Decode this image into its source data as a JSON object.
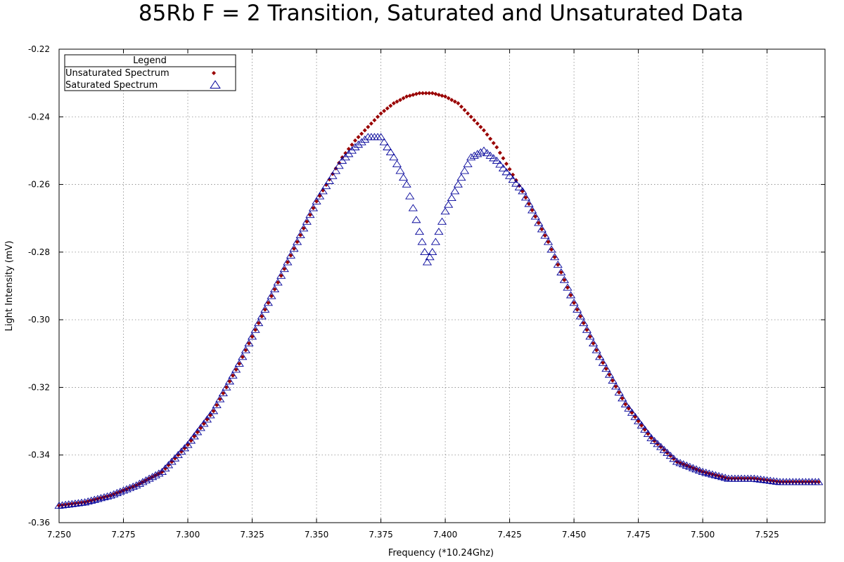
{
  "chart_data": {
    "type": "scatter",
    "title": "85Rb F = 2 Transition, Saturated and Unsaturated Data",
    "xlabel": "Frequency (*10.24Ghz)",
    "ylabel": "Light Intensity (mV)",
    "xlim": [
      7.25,
      7.5475
    ],
    "ylim": [
      -0.36,
      -0.22
    ],
    "x_ticks": [
      7.25,
      7.275,
      7.3,
      7.325,
      7.35,
      7.375,
      7.4,
      7.425,
      7.45,
      7.475,
      7.5,
      7.525
    ],
    "x_tick_labels": [
      "7.250",
      "7.275",
      "7.300",
      "7.325",
      "7.350",
      "7.375",
      "7.400",
      "7.425",
      "7.450",
      "7.475",
      "7.500",
      "7.525"
    ],
    "y_ticks": [
      -0.36,
      -0.34,
      -0.32,
      -0.3,
      -0.28,
      -0.26,
      -0.24,
      -0.22
    ],
    "y_tick_labels": [
      "-0.36",
      "-0.34",
      "-0.32",
      "-0.30",
      "-0.28",
      "-0.26",
      "-0.24",
      "-0.22"
    ],
    "grid": true,
    "legend": {
      "title": "Legend",
      "position": "top-left"
    },
    "series": [
      {
        "name": "Unsaturated Spectrum",
        "color": "#990000",
        "marker": "diamond",
        "x": [
          7.25,
          7.26,
          7.27,
          7.28,
          7.29,
          7.3,
          7.31,
          7.32,
          7.33,
          7.34,
          7.35,
          7.36,
          7.365,
          7.37,
          7.375,
          7.38,
          7.385,
          7.39,
          7.395,
          7.4,
          7.405,
          7.41,
          7.415,
          7.42,
          7.43,
          7.44,
          7.45,
          7.46,
          7.47,
          7.48,
          7.49,
          7.5,
          7.51,
          7.52,
          7.53,
          7.545
        ],
        "y": [
          -0.355,
          -0.354,
          -0.352,
          -0.349,
          -0.345,
          -0.337,
          -0.327,
          -0.313,
          -0.297,
          -0.281,
          -0.265,
          -0.252,
          -0.247,
          -0.243,
          -0.239,
          -0.236,
          -0.234,
          -0.233,
          -0.233,
          -0.234,
          -0.236,
          -0.24,
          -0.244,
          -0.249,
          -0.262,
          -0.277,
          -0.295,
          -0.311,
          -0.325,
          -0.335,
          -0.342,
          -0.345,
          -0.347,
          -0.347,
          -0.348,
          -0.348
        ]
      },
      {
        "name": "Saturated Spectrum",
        "color": "#000099",
        "marker": "triangle",
        "x": [
          7.25,
          7.26,
          7.27,
          7.28,
          7.29,
          7.3,
          7.31,
          7.32,
          7.33,
          7.34,
          7.35,
          7.36,
          7.365,
          7.37,
          7.375,
          7.38,
          7.385,
          7.39,
          7.393,
          7.395,
          7.4,
          7.405,
          7.41,
          7.415,
          7.42,
          7.43,
          7.44,
          7.45,
          7.46,
          7.47,
          7.48,
          7.49,
          7.5,
          7.51,
          7.52,
          7.53,
          7.545
        ],
        "y": [
          -0.355,
          -0.354,
          -0.352,
          -0.349,
          -0.345,
          -0.337,
          -0.327,
          -0.313,
          -0.297,
          -0.281,
          -0.265,
          -0.253,
          -0.249,
          -0.246,
          -0.246,
          -0.252,
          -0.26,
          -0.274,
          -0.283,
          -0.28,
          -0.268,
          -0.26,
          -0.252,
          -0.25,
          -0.253,
          -0.262,
          -0.277,
          -0.295,
          -0.311,
          -0.325,
          -0.335,
          -0.342,
          -0.345,
          -0.347,
          -0.347,
          -0.348,
          -0.348
        ]
      }
    ]
  }
}
